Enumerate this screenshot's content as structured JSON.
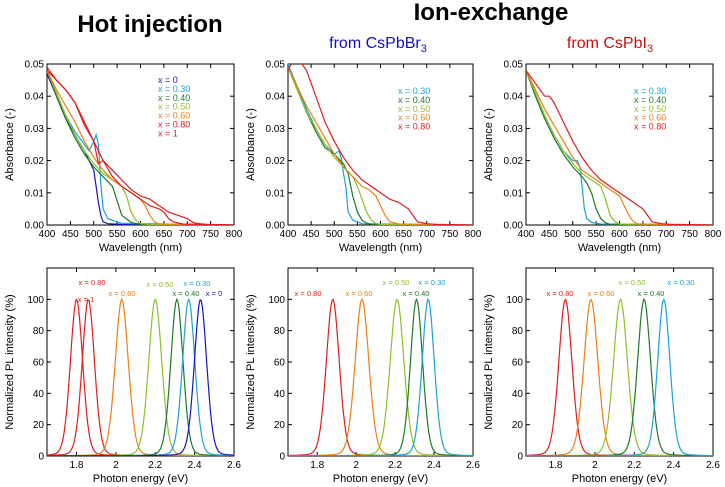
{
  "headers": {
    "hot_injection": "Hot injection",
    "ion_exchange": "Ion-exchange",
    "from_br": "from CsPbBr",
    "from_br_sub": "3",
    "from_br_color": "#1010c8",
    "from_i": "from CsPbI",
    "from_i_sub": "3",
    "from_i_color": "#c81010"
  },
  "series_colors": {
    "x = 0": "#1515c0",
    "x = 0.30": "#1aa3d6",
    "x = 0.40": "#1d7a2a",
    "x = 0.50": "#8fbf2a",
    "x = 0.60": "#ee7f16",
    "x = 0.80": "#e01d1d",
    "x = 1": "#e01d1d"
  },
  "chart_data": [
    {
      "id": "abs-hot",
      "type": "line",
      "xlabel": "Wavelength (nm)",
      "ylabel": "Absorbance (-)",
      "xlim": [
        400,
        800
      ],
      "ylim": [
        0,
        0.05
      ],
      "xticks": [
        "400",
        "450",
        "500",
        "550",
        "600",
        "650",
        "700",
        "750",
        "800"
      ],
      "yticks": [
        "0.00",
        "0.01",
        "0.02",
        "0.03",
        "0.04",
        "0.05"
      ],
      "legend": [
        "x = 0",
        "x = 0.30",
        "x = 0.40",
        "x = 0.50",
        "x = 0.60",
        "x = 0.80",
        "x = 1"
      ],
      "series": [
        {
          "name": "x = 0",
          "x": [
            400,
            420,
            440,
            460,
            480,
            490,
            500,
            505,
            510,
            515,
            520,
            530,
            560,
            600,
            800
          ],
          "values": [
            0.047,
            0.04,
            0.033,
            0.028,
            0.023,
            0.02,
            0.017,
            0.012,
            0.007,
            0.003,
            0.001,
            0.0004,
            0.0002,
            0.0001,
            0
          ]
        },
        {
          "name": "x = 0.30",
          "x": [
            400,
            420,
            440,
            460,
            480,
            490,
            500,
            505,
            510,
            515,
            520,
            530,
            560,
            800
          ],
          "values": [
            0.048,
            0.041,
            0.034,
            0.029,
            0.025,
            0.023,
            0.026,
            0.028,
            0.025,
            0.013,
            0.005,
            0.002,
            0.0005,
            0
          ]
        },
        {
          "name": "x = 0.40",
          "x": [
            400,
            420,
            440,
            460,
            480,
            500,
            520,
            540,
            560,
            580,
            600,
            800
          ],
          "values": [
            0.048,
            0.04,
            0.033,
            0.027,
            0.022,
            0.018,
            0.015,
            0.012,
            0.003,
            0.0008,
            0.0002,
            0
          ]
        },
        {
          "name": "x = 0.50",
          "x": [
            400,
            420,
            440,
            460,
            480,
            500,
            520,
            540,
            560,
            570,
            580,
            590,
            600,
            620,
            800
          ],
          "values": [
            0.048,
            0.041,
            0.034,
            0.028,
            0.023,
            0.019,
            0.016,
            0.014,
            0.012,
            0.009,
            0.004,
            0.0015,
            0.0005,
            0.0002,
            0
          ]
        },
        {
          "name": "x = 0.60",
          "x": [
            400,
            420,
            440,
            460,
            480,
            500,
            520,
            540,
            560,
            580,
            600,
            610,
            620,
            630,
            640,
            800
          ],
          "values": [
            0.048,
            0.042,
            0.037,
            0.032,
            0.026,
            0.021,
            0.017,
            0.014,
            0.012,
            0.01,
            0.008,
            0.006,
            0.003,
            0.001,
            0.0003,
            0
          ]
        },
        {
          "name": "x = 0.80",
          "x": [
            400,
            420,
            440,
            460,
            480,
            500,
            510,
            520,
            540,
            560,
            580,
            600,
            620,
            640,
            650,
            660,
            670,
            690,
            800
          ],
          "values": [
            0.049,
            0.045,
            0.042,
            0.038,
            0.031,
            0.026,
            0.019,
            0.02,
            0.015,
            0.012,
            0.01,
            0.008,
            0.006,
            0.005,
            0.004,
            0.002,
            0.001,
            0.0003,
            0
          ]
        },
        {
          "name": "x = 1",
          "x": [
            400,
            420,
            440,
            460,
            480,
            500,
            520,
            540,
            560,
            580,
            600,
            620,
            640,
            660,
            680,
            700,
            710,
            720,
            740,
            800
          ],
          "values": [
            0.048,
            0.045,
            0.042,
            0.038,
            0.032,
            0.026,
            0.02,
            0.017,
            0.014,
            0.011,
            0.009,
            0.008,
            0.006,
            0.004,
            0.003,
            0.002,
            0.001,
            0.0005,
            0.0002,
            0
          ]
        }
      ]
    },
    {
      "id": "abs-br",
      "type": "line",
      "xlabel": "Wavelength (nm)",
      "ylabel": "Absorbance (-)",
      "xlim": [
        400,
        800
      ],
      "ylim": [
        0,
        0.05
      ],
      "xticks": [
        "400",
        "450",
        "500",
        "550",
        "600",
        "650",
        "700",
        "750",
        "800"
      ],
      "yticks": [
        "0.00",
        "0.01",
        "0.02",
        "0.03",
        "0.04",
        "0.05"
      ],
      "legend": [
        "x = 0.30",
        "x = 0.40",
        "x = 0.50",
        "x = 0.60",
        "x = 0.80"
      ],
      "series": [
        {
          "name": "x = 0.30",
          "x": [
            400,
            420,
            440,
            460,
            480,
            500,
            510,
            515,
            520,
            525,
            530,
            540,
            560,
            800
          ],
          "values": [
            0.05,
            0.043,
            0.036,
            0.03,
            0.025,
            0.022,
            0.023,
            0.021,
            0.016,
            0.012,
            0.004,
            0.0015,
            0.0004,
            0
          ]
        },
        {
          "name": "x = 0.40",
          "x": [
            400,
            420,
            440,
            460,
            480,
            500,
            520,
            530,
            540,
            550,
            560,
            570,
            580,
            800
          ],
          "values": [
            0.049,
            0.042,
            0.035,
            0.029,
            0.024,
            0.022,
            0.019,
            0.016,
            0.009,
            0.004,
            0.0015,
            0.0006,
            0.0002,
            0
          ]
        },
        {
          "name": "x = 0.50",
          "x": [
            400,
            420,
            440,
            460,
            480,
            500,
            520,
            540,
            550,
            560,
            570,
            580,
            590,
            600,
            800
          ],
          "values": [
            0.049,
            0.042,
            0.035,
            0.03,
            0.025,
            0.021,
            0.018,
            0.015,
            0.012,
            0.008,
            0.004,
            0.0015,
            0.0005,
            0.0002,
            0
          ]
        },
        {
          "name": "x = 0.60",
          "x": [
            400,
            420,
            440,
            460,
            480,
            500,
            520,
            540,
            560,
            575,
            590,
            600,
            610,
            620,
            640,
            800
          ],
          "values": [
            0.049,
            0.043,
            0.037,
            0.032,
            0.027,
            0.022,
            0.018,
            0.015,
            0.012,
            0.011,
            0.009,
            0.006,
            0.003,
            0.001,
            0.0003,
            0
          ]
        },
        {
          "name": "x = 0.80",
          "x": [
            400,
            410,
            420,
            440,
            460,
            480,
            500,
            520,
            540,
            560,
            580,
            600,
            620,
            640,
            660,
            670,
            680,
            700,
            720,
            800
          ],
          "values": [
            0.048,
            0.051,
            0.052,
            0.048,
            0.04,
            0.032,
            0.026,
            0.021,
            0.017,
            0.014,
            0.012,
            0.01,
            0.008,
            0.007,
            0.005,
            0.003,
            0.001,
            0.0004,
            0.0002,
            0
          ]
        }
      ]
    },
    {
      "id": "abs-i",
      "type": "line",
      "xlabel": "Wavelength (nm)",
      "ylabel": "Absorbance (-)",
      "xlim": [
        400,
        800
      ],
      "ylim": [
        0,
        0.05
      ],
      "xticks": [
        "400",
        "450",
        "500",
        "550",
        "600",
        "650",
        "700",
        "750",
        "800"
      ],
      "yticks": [
        "0.00",
        "0.01",
        "0.02",
        "0.03",
        "0.04",
        "0.05"
      ],
      "legend": [
        "x = 0.30",
        "x = 0.40",
        "x = 0.50",
        "x = 0.60",
        "x = 0.80"
      ],
      "series": [
        {
          "name": "x = 0.30",
          "x": [
            400,
            420,
            440,
            460,
            480,
            500,
            510,
            515,
            520,
            525,
            530,
            540,
            560,
            800
          ],
          "values": [
            0.048,
            0.041,
            0.034,
            0.028,
            0.023,
            0.02,
            0.02,
            0.018,
            0.012,
            0.005,
            0.002,
            0.0008,
            0.0003,
            0
          ]
        },
        {
          "name": "x = 0.40",
          "x": [
            400,
            420,
            440,
            460,
            480,
            500,
            520,
            530,
            540,
            550,
            560,
            570,
            580,
            800
          ],
          "values": [
            0.048,
            0.04,
            0.033,
            0.027,
            0.022,
            0.018,
            0.015,
            0.013,
            0.01,
            0.005,
            0.002,
            0.0007,
            0.0002,
            0
          ]
        },
        {
          "name": "x = 0.50",
          "x": [
            400,
            420,
            440,
            460,
            480,
            500,
            520,
            540,
            560,
            570,
            580,
            590,
            600,
            800
          ],
          "values": [
            0.048,
            0.041,
            0.034,
            0.028,
            0.023,
            0.019,
            0.016,
            0.014,
            0.012,
            0.008,
            0.003,
            0.001,
            0.0003,
            0
          ]
        },
        {
          "name": "x = 0.60",
          "x": [
            400,
            420,
            440,
            460,
            480,
            500,
            520,
            540,
            560,
            580,
            600,
            610,
            620,
            630,
            640,
            800
          ],
          "values": [
            0.048,
            0.042,
            0.036,
            0.031,
            0.026,
            0.021,
            0.017,
            0.015,
            0.013,
            0.011,
            0.009,
            0.006,
            0.003,
            0.001,
            0.0003,
            0
          ]
        },
        {
          "name": "x = 0.80",
          "x": [
            400,
            420,
            440,
            450,
            460,
            480,
            500,
            520,
            540,
            560,
            580,
            600,
            620,
            640,
            650,
            660,
            670,
            690,
            710,
            800
          ],
          "values": [
            0.048,
            0.044,
            0.04,
            0.04,
            0.038,
            0.032,
            0.026,
            0.021,
            0.017,
            0.014,
            0.012,
            0.01,
            0.008,
            0.006,
            0.005,
            0.003,
            0.001,
            0.0004,
            0.0002,
            0
          ]
        }
      ]
    },
    {
      "id": "pl-hot",
      "type": "line",
      "xlabel": "Photon energy (eV)",
      "ylabel": "Normalized PL intensity (%)",
      "xlim": [
        1.65,
        2.6
      ],
      "ylim": [
        0,
        120
      ],
      "xticks": [
        "1.8",
        "2",
        "2.2",
        "2.4",
        "2.6"
      ],
      "yticks": [
        "0",
        "20",
        "40",
        "60",
        "80",
        "100"
      ],
      "peaks": [
        {
          "label": "x = 1",
          "center": 1.8,
          "fwhm": 0.075,
          "amplitude": 100
        },
        {
          "label": "x = 0.80",
          "center": 1.86,
          "fwhm": 0.075,
          "amplitude": 100
        },
        {
          "label": "x = 0.60",
          "center": 2.03,
          "fwhm": 0.08,
          "amplitude": 100
        },
        {
          "label": "x = 0.50",
          "center": 2.2,
          "fwhm": 0.08,
          "amplitude": 100
        },
        {
          "label": "x = 0.40",
          "center": 2.31,
          "fwhm": 0.075,
          "amplitude": 100
        },
        {
          "label": "x = 0.30",
          "center": 2.37,
          "fwhm": 0.075,
          "amplitude": 100
        },
        {
          "label": "x = 0",
          "center": 2.43,
          "fwhm": 0.075,
          "amplitude": 100
        }
      ]
    },
    {
      "id": "pl-br",
      "type": "line",
      "xlabel": "Photon energy (eV)",
      "ylabel": "Normalized PL intensity (%)",
      "xlim": [
        1.65,
        2.6
      ],
      "ylim": [
        0,
        120
      ],
      "xticks": [
        "1.8",
        "2",
        "2.2",
        "2.4",
        "2.6"
      ],
      "yticks": [
        "0",
        "20",
        "40",
        "60",
        "80",
        "100"
      ],
      "peaks": [
        {
          "label": "x = 0.80",
          "center": 1.88,
          "fwhm": 0.08,
          "amplitude": 100
        },
        {
          "label": "x = 0.60",
          "center": 2.03,
          "fwhm": 0.085,
          "amplitude": 100
        },
        {
          "label": "x = 0.50",
          "center": 2.21,
          "fwhm": 0.085,
          "amplitude": 100
        },
        {
          "label": "x = 0.40",
          "center": 2.31,
          "fwhm": 0.075,
          "amplitude": 100
        },
        {
          "label": "x = 0.30",
          "center": 2.37,
          "fwhm": 0.075,
          "amplitude": 100
        }
      ]
    },
    {
      "id": "pl-i",
      "type": "line",
      "xlabel": "Photon energy (eV)",
      "ylabel": "Normalized PL intensity (%)",
      "xlim": [
        1.65,
        2.6
      ],
      "ylim": [
        0,
        120
      ],
      "xticks": [
        "1.8",
        "2",
        "2.2",
        "2.4",
        "2.6"
      ],
      "yticks": [
        "0",
        "20",
        "40",
        "60",
        "80",
        "100"
      ],
      "peaks": [
        {
          "label": "x = 0.80",
          "center": 1.85,
          "fwhm": 0.08,
          "amplitude": 100
        },
        {
          "label": "x = 0.60",
          "center": 1.98,
          "fwhm": 0.085,
          "amplitude": 100
        },
        {
          "label": "x = 0.50",
          "center": 2.13,
          "fwhm": 0.085,
          "amplitude": 100
        },
        {
          "label": "x = 0.40",
          "center": 2.25,
          "fwhm": 0.08,
          "amplitude": 100
        },
        {
          "label": "x = 0.30",
          "center": 2.35,
          "fwhm": 0.075,
          "amplitude": 100
        }
      ]
    }
  ]
}
